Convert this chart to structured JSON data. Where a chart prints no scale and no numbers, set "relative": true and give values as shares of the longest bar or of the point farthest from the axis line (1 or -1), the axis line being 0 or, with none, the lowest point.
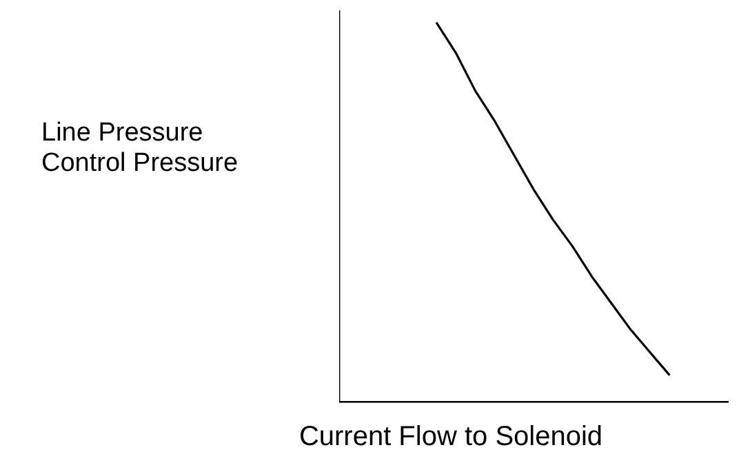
{
  "chart_data": {
    "type": "line",
    "relative": true,
    "xlabel": "Current Flow to Solenoid",
    "ylabel": "Line Pressure\nControl Pressure",
    "categories": [
      null,
      null,
      null,
      null,
      null,
      null,
      null,
      null,
      null,
      null,
      null,
      null,
      null,
      null,
      null,
      null,
      null,
      null,
      null,
      null,
      null
    ],
    "series": [
      {
        "color": "#000000",
        "values": [
          null,
          null,
          null,
          null,
          null,
          1.0,
          0.92,
          0.82,
          0.74,
          0.65,
          0.56,
          0.48,
          0.41,
          0.33,
          0.26,
          0.19,
          0.13,
          0.07,
          null,
          null,
          null
        ]
      }
    ],
    "marker": "none",
    "grid": false,
    "legend": false
  }
}
